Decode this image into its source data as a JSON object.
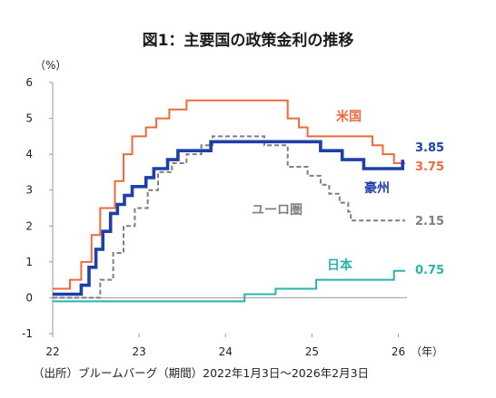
{
  "chart_data": {
    "type": "line",
    "title": "図1：主要国の政策金利の推移",
    "y_unit": "（%）",
    "x_unit": "（年）",
    "source": "（出所）ブルームバーグ（期間）2022年1月3日～2026年2月3日",
    "xlim": [
      22,
      26.1
    ],
    "ylim": [
      -1,
      6
    ],
    "x_ticks": [
      22,
      23,
      24,
      25,
      26
    ],
    "y_ticks": [
      -1,
      0,
      1,
      2,
      3,
      4,
      5,
      6
    ],
    "grid": false,
    "series": [
      {
        "name": "米国",
        "end_label": "3.75",
        "color": "#ee6a3e",
        "style": "solid",
        "points": [
          [
            22.0,
            0.25
          ],
          [
            22.2,
            0.25
          ],
          [
            22.2,
            0.5
          ],
          [
            22.33,
            0.5
          ],
          [
            22.33,
            1.0
          ],
          [
            22.45,
            1.0
          ],
          [
            22.45,
            1.75
          ],
          [
            22.55,
            1.75
          ],
          [
            22.55,
            2.5
          ],
          [
            22.72,
            2.5
          ],
          [
            22.72,
            3.25
          ],
          [
            22.82,
            3.25
          ],
          [
            22.82,
            4.0
          ],
          [
            22.92,
            4.0
          ],
          [
            22.92,
            4.5
          ],
          [
            23.08,
            4.5
          ],
          [
            23.08,
            4.75
          ],
          [
            23.2,
            4.75
          ],
          [
            23.2,
            5.0
          ],
          [
            23.35,
            5.0
          ],
          [
            23.35,
            5.25
          ],
          [
            23.55,
            5.25
          ],
          [
            23.55,
            5.5
          ],
          [
            24.72,
            5.5
          ],
          [
            24.72,
            5.0
          ],
          [
            24.85,
            5.0
          ],
          [
            24.85,
            4.75
          ],
          [
            24.95,
            4.75
          ],
          [
            24.95,
            4.5
          ],
          [
            25.7,
            4.5
          ],
          [
            25.7,
            4.25
          ],
          [
            25.82,
            4.25
          ],
          [
            25.82,
            4.0
          ],
          [
            25.95,
            4.0
          ],
          [
            25.95,
            3.75
          ],
          [
            26.08,
            3.75
          ]
        ]
      },
      {
        "name": "豪州",
        "end_label": "3.85",
        "color": "#1f3fa8",
        "style": "solid-thick",
        "points": [
          [
            22.0,
            0.1
          ],
          [
            22.33,
            0.1
          ],
          [
            22.33,
            0.35
          ],
          [
            22.42,
            0.35
          ],
          [
            22.42,
            0.85
          ],
          [
            22.5,
            0.85
          ],
          [
            22.5,
            1.35
          ],
          [
            22.58,
            1.35
          ],
          [
            22.58,
            1.85
          ],
          [
            22.67,
            1.85
          ],
          [
            22.67,
            2.35
          ],
          [
            22.75,
            2.35
          ],
          [
            22.75,
            2.6
          ],
          [
            22.83,
            2.6
          ],
          [
            22.83,
            2.85
          ],
          [
            22.92,
            2.85
          ],
          [
            22.92,
            3.1
          ],
          [
            23.08,
            3.1
          ],
          [
            23.08,
            3.35
          ],
          [
            23.17,
            3.35
          ],
          [
            23.17,
            3.6
          ],
          [
            23.33,
            3.6
          ],
          [
            23.33,
            3.85
          ],
          [
            23.45,
            3.85
          ],
          [
            23.45,
            4.1
          ],
          [
            23.83,
            4.1
          ],
          [
            23.83,
            4.35
          ],
          [
            25.1,
            4.35
          ],
          [
            25.1,
            4.1
          ],
          [
            25.35,
            4.1
          ],
          [
            25.35,
            3.85
          ],
          [
            25.6,
            3.85
          ],
          [
            25.6,
            3.6
          ],
          [
            26.05,
            3.6
          ],
          [
            26.05,
            3.85
          ]
        ]
      },
      {
        "name": "ユーロ圏",
        "end_label": "2.15",
        "color": "#7f7f7f",
        "style": "dashed",
        "points": [
          [
            22.0,
            0.0
          ],
          [
            22.55,
            0.0
          ],
          [
            22.55,
            0.5
          ],
          [
            22.7,
            0.5
          ],
          [
            22.7,
            1.25
          ],
          [
            22.82,
            1.25
          ],
          [
            22.82,
            2.0
          ],
          [
            22.95,
            2.0
          ],
          [
            22.95,
            2.5
          ],
          [
            23.1,
            2.5
          ],
          [
            23.1,
            3.0
          ],
          [
            23.22,
            3.0
          ],
          [
            23.22,
            3.5
          ],
          [
            23.38,
            3.5
          ],
          [
            23.38,
            3.75
          ],
          [
            23.55,
            3.75
          ],
          [
            23.55,
            4.0
          ],
          [
            23.72,
            4.0
          ],
          [
            23.72,
            4.25
          ],
          [
            23.85,
            4.25
          ],
          [
            23.85,
            4.5
          ],
          [
            24.45,
            4.5
          ],
          [
            24.45,
            4.25
          ],
          [
            24.72,
            4.25
          ],
          [
            24.72,
            3.65
          ],
          [
            24.95,
            3.65
          ],
          [
            24.95,
            3.4
          ],
          [
            25.1,
            3.4
          ],
          [
            25.1,
            3.15
          ],
          [
            25.2,
            3.15
          ],
          [
            25.2,
            2.9
          ],
          [
            25.32,
            2.9
          ],
          [
            25.32,
            2.65
          ],
          [
            25.42,
            2.65
          ],
          [
            25.42,
            2.4
          ],
          [
            25.45,
            2.4
          ],
          [
            25.45,
            2.15
          ],
          [
            26.08,
            2.15
          ]
        ]
      },
      {
        "name": "日本",
        "end_label": "0.75",
        "color": "#2ab3ad",
        "style": "solid",
        "points": [
          [
            22.0,
            -0.1
          ],
          [
            24.22,
            -0.1
          ],
          [
            24.22,
            0.1
          ],
          [
            24.58,
            0.1
          ],
          [
            24.58,
            0.25
          ],
          [
            25.05,
            0.25
          ],
          [
            25.05,
            0.5
          ],
          [
            25.95,
            0.5
          ],
          [
            25.95,
            0.75
          ],
          [
            26.08,
            0.75
          ]
        ]
      }
    ]
  }
}
